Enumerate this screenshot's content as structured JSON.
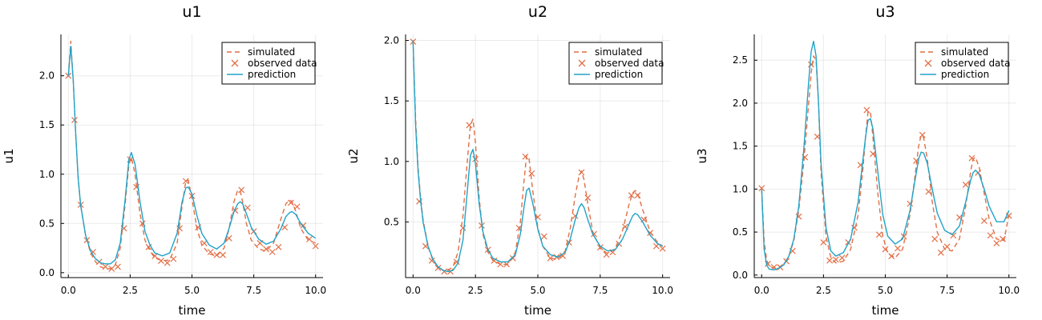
{
  "chart_data": [
    {
      "type": "line",
      "title": "u1",
      "xlabel": "time",
      "ylabel": "u1",
      "xlim": [
        -0.3,
        10.3
      ],
      "ylim": [
        -0.05,
        2.42
      ],
      "xticks": [
        0,
        2.5,
        5,
        7.5,
        10
      ],
      "xtick_labels": [
        "0.0",
        "2.5",
        "5.0",
        "7.5",
        "10.0"
      ],
      "yticks": [
        0,
        0.5,
        1.0,
        1.5,
        2.0
      ],
      "ytick_labels": [
        "0.0",
        "0.5",
        "1.0",
        "1.5",
        "2.0"
      ],
      "grid": true,
      "legend": "top-right",
      "series": [
        {
          "name": "simulated",
          "style": "dashed",
          "color": "#e26f46",
          "x": [
            0,
            0.1,
            0.2,
            0.3,
            0.4,
            0.5,
            0.7,
            0.9,
            1.1,
            1.3,
            1.5,
            1.7,
            1.9,
            2.1,
            2.3,
            2.45,
            2.55,
            2.7,
            2.9,
            3.1,
            3.3,
            3.5,
            3.8,
            4.1,
            4.4,
            4.6,
            4.75,
            4.85,
            5.0,
            5.2,
            5.4,
            5.7,
            6.0,
            6.3,
            6.5,
            6.7,
            6.85,
            6.95,
            7.05,
            7.2,
            7.4,
            7.7,
            8.0,
            8.3,
            8.6,
            8.8,
            8.95,
            9.05,
            9.2,
            9.4,
            9.7,
            10.0
          ],
          "y": [
            2.0,
            2.35,
            1.95,
            1.4,
            0.95,
            0.68,
            0.38,
            0.2,
            0.11,
            0.06,
            0.04,
            0.04,
            0.08,
            0.25,
            0.7,
            1.1,
            1.17,
            1.0,
            0.6,
            0.33,
            0.22,
            0.15,
            0.12,
            0.13,
            0.3,
            0.68,
            0.93,
            0.94,
            0.75,
            0.45,
            0.28,
            0.19,
            0.17,
            0.25,
            0.45,
            0.72,
            0.84,
            0.83,
            0.72,
            0.5,
            0.33,
            0.24,
            0.22,
            0.3,
            0.55,
            0.7,
            0.74,
            0.72,
            0.62,
            0.45,
            0.33,
            0.3
          ]
        },
        {
          "name": "observed data",
          "style": "markers",
          "color": "#e26f46",
          "x": [
            0.0,
            0.25,
            0.5,
            0.75,
            1.0,
            1.25,
            1.5,
            1.75,
            2.0,
            2.25,
            2.5,
            2.75,
            3.0,
            3.25,
            3.5,
            3.75,
            4.0,
            4.25,
            4.5,
            4.75,
            5.0,
            5.25,
            5.5,
            5.75,
            6.0,
            6.25,
            6.5,
            6.75,
            7.0,
            7.25,
            7.5,
            7.75,
            8.0,
            8.25,
            8.5,
            8.75,
            9.0,
            9.25,
            9.5,
            9.75,
            10.0
          ],
          "y": [
            2.0,
            1.55,
            0.69,
            0.33,
            0.21,
            0.11,
            0.06,
            0.04,
            0.06,
            0.45,
            1.15,
            0.87,
            0.5,
            0.26,
            0.17,
            0.12,
            0.1,
            0.14,
            0.45,
            0.93,
            0.78,
            0.46,
            0.3,
            0.21,
            0.18,
            0.18,
            0.35,
            0.63,
            0.84,
            0.66,
            0.42,
            0.3,
            0.24,
            0.21,
            0.26,
            0.46,
            0.71,
            0.67,
            0.48,
            0.34,
            0.27
          ]
        },
        {
          "name": "prediction",
          "style": "solid",
          "color": "#20a3c8",
          "x": [
            0,
            0.1,
            0.2,
            0.3,
            0.4,
            0.5,
            0.7,
            0.9,
            1.1,
            1.3,
            1.5,
            1.7,
            1.9,
            2.1,
            2.3,
            2.45,
            2.55,
            2.7,
            2.9,
            3.1,
            3.3,
            3.5,
            3.8,
            4.1,
            4.4,
            4.6,
            4.75,
            4.85,
            5.0,
            5.2,
            5.4,
            5.7,
            6.0,
            6.3,
            6.5,
            6.7,
            6.85,
            6.95,
            7.05,
            7.2,
            7.4,
            7.7,
            8.0,
            8.3,
            8.6,
            8.8,
            8.95,
            9.05,
            9.2,
            9.4,
            9.7,
            10.0
          ],
          "y": [
            2.0,
            2.3,
            1.95,
            1.4,
            0.95,
            0.68,
            0.38,
            0.22,
            0.14,
            0.1,
            0.09,
            0.09,
            0.13,
            0.3,
            0.75,
            1.15,
            1.22,
            1.1,
            0.72,
            0.42,
            0.28,
            0.2,
            0.17,
            0.2,
            0.4,
            0.72,
            0.86,
            0.87,
            0.8,
            0.58,
            0.4,
            0.28,
            0.24,
            0.3,
            0.45,
            0.62,
            0.7,
            0.72,
            0.7,
            0.6,
            0.46,
            0.34,
            0.29,
            0.32,
            0.45,
            0.57,
            0.61,
            0.62,
            0.59,
            0.5,
            0.4,
            0.35
          ]
        }
      ]
    },
    {
      "type": "line",
      "title": "u2",
      "xlabel": "time",
      "ylabel": "u2",
      "xlim": [
        -0.3,
        10.3
      ],
      "ylim": [
        0.04,
        2.05
      ],
      "xticks": [
        0,
        2.5,
        5,
        7.5,
        10
      ],
      "xtick_labels": [
        "0.0",
        "2.5",
        "5.0",
        "7.5",
        "10.0"
      ],
      "yticks": [
        0.5,
        1.0,
        1.5,
        2.0
      ],
      "ytick_labels": [
        "0.5",
        "1.0",
        "1.5",
        "2.0"
      ],
      "grid": true,
      "legend": "top-right",
      "series": [
        {
          "name": "simulated",
          "style": "dashed",
          "color": "#e26f46",
          "x": [
            0,
            0.1,
            0.2,
            0.3,
            0.4,
            0.6,
            0.8,
            1.0,
            1.2,
            1.4,
            1.6,
            1.8,
            2.0,
            2.15,
            2.3,
            2.4,
            2.5,
            2.65,
            2.8,
            3.0,
            3.2,
            3.5,
            3.8,
            4.1,
            4.3,
            4.45,
            4.55,
            4.65,
            4.8,
            5.0,
            5.2,
            5.5,
            5.8,
            6.1,
            6.3,
            6.5,
            6.65,
            6.75,
            6.85,
            7.0,
            7.2,
            7.5,
            7.8,
            8.1,
            8.4,
            8.65,
            8.8,
            8.9,
            9.0,
            9.2,
            9.5,
            9.8,
            10.0
          ],
          "y": [
            2.0,
            1.35,
            0.95,
            0.7,
            0.52,
            0.3,
            0.18,
            0.13,
            0.1,
            0.1,
            0.13,
            0.25,
            0.55,
            0.95,
            1.3,
            1.35,
            1.15,
            0.7,
            0.4,
            0.25,
            0.18,
            0.15,
            0.15,
            0.25,
            0.5,
            0.85,
            1.05,
            1.02,
            0.75,
            0.45,
            0.3,
            0.2,
            0.19,
            0.26,
            0.45,
            0.72,
            0.88,
            0.92,
            0.85,
            0.65,
            0.42,
            0.28,
            0.24,
            0.28,
            0.43,
            0.64,
            0.74,
            0.76,
            0.74,
            0.6,
            0.42,
            0.33,
            0.3
          ]
        },
        {
          "name": "observed data",
          "style": "markers",
          "color": "#e26f46",
          "x": [
            0.0,
            0.25,
            0.5,
            0.75,
            1.0,
            1.25,
            1.5,
            1.75,
            2.0,
            2.25,
            2.5,
            2.75,
            3.0,
            3.25,
            3.5,
            3.75,
            4.0,
            4.25,
            4.5,
            4.75,
            5.0,
            5.25,
            5.5,
            5.75,
            6.0,
            6.25,
            6.5,
            6.75,
            7.0,
            7.25,
            7.5,
            7.75,
            8.0,
            8.25,
            8.5,
            8.75,
            9.0,
            9.25,
            9.5,
            9.75,
            10.0
          ],
          "y": [
            1.99,
            0.67,
            0.3,
            0.18,
            0.12,
            0.09,
            0.09,
            0.17,
            0.45,
            1.3,
            1.02,
            0.47,
            0.27,
            0.18,
            0.15,
            0.15,
            0.2,
            0.45,
            1.04,
            0.9,
            0.54,
            0.38,
            0.2,
            0.21,
            0.22,
            0.33,
            0.55,
            0.91,
            0.7,
            0.4,
            0.29,
            0.23,
            0.25,
            0.32,
            0.46,
            0.72,
            0.72,
            0.52,
            0.41,
            0.3,
            0.28
          ]
        },
        {
          "name": "prediction",
          "style": "solid",
          "color": "#20a3c8",
          "x": [
            0,
            0.1,
            0.2,
            0.3,
            0.4,
            0.6,
            0.8,
            1.0,
            1.2,
            1.4,
            1.6,
            1.8,
            2.0,
            2.15,
            2.3,
            2.4,
            2.5,
            2.65,
            2.8,
            3.0,
            3.2,
            3.5,
            3.8,
            4.1,
            4.3,
            4.45,
            4.55,
            4.65,
            4.8,
            5.0,
            5.2,
            5.5,
            5.8,
            6.1,
            6.3,
            6.5,
            6.65,
            6.75,
            6.85,
            7.0,
            7.2,
            7.5,
            7.8,
            8.1,
            8.4,
            8.65,
            8.8,
            8.9,
            9.0,
            9.2,
            9.5,
            9.8,
            10.0
          ],
          "y": [
            2.0,
            1.3,
            0.92,
            0.68,
            0.5,
            0.3,
            0.19,
            0.13,
            0.1,
            0.09,
            0.1,
            0.16,
            0.35,
            0.7,
            1.05,
            1.1,
            0.98,
            0.65,
            0.42,
            0.27,
            0.2,
            0.17,
            0.17,
            0.23,
            0.4,
            0.63,
            0.76,
            0.78,
            0.65,
            0.44,
            0.3,
            0.23,
            0.21,
            0.25,
            0.36,
            0.52,
            0.62,
            0.65,
            0.62,
            0.52,
            0.4,
            0.3,
            0.26,
            0.27,
            0.36,
            0.48,
            0.55,
            0.57,
            0.56,
            0.5,
            0.39,
            0.32,
            0.3
          ]
        }
      ]
    },
    {
      "type": "line",
      "title": "u3",
      "xlabel": "time",
      "ylabel": "u3",
      "xlim": [
        -0.3,
        10.3
      ],
      "ylim": [
        -0.03,
        2.8
      ],
      "xticks": [
        0,
        2.5,
        5,
        7.5,
        10
      ],
      "xtick_labels": [
        "0.0",
        "2.5",
        "5.0",
        "7.5",
        "10.0"
      ],
      "yticks": [
        0,
        0.5,
        1.0,
        1.5,
        2.0,
        2.5
      ],
      "ytick_labels": [
        "0.0",
        "0.5",
        "1.0",
        "1.5",
        "2.0",
        "2.5"
      ],
      "grid": true,
      "legend": "top-right",
      "series": [
        {
          "name": "simulated",
          "style": "dashed",
          "color": "#e26f46",
          "x": [
            0,
            0.1,
            0.2,
            0.3,
            0.5,
            0.7,
            0.9,
            1.1,
            1.3,
            1.5,
            1.7,
            1.9,
            2.0,
            2.1,
            2.2,
            2.3,
            2.4,
            2.6,
            2.8,
            3.0,
            3.3,
            3.6,
            3.9,
            4.1,
            4.2,
            4.3,
            4.4,
            4.5,
            4.7,
            4.9,
            5.1,
            5.4,
            5.7,
            6.0,
            6.2,
            6.35,
            6.45,
            6.55,
            6.7,
            6.9,
            7.1,
            7.4,
            7.7,
            8.0,
            8.25,
            8.45,
            8.55,
            8.65,
            8.8,
            9.0,
            9.2,
            9.5,
            9.8,
            10.0
          ],
          "y": [
            1.0,
            0.4,
            0.18,
            0.1,
            0.08,
            0.09,
            0.13,
            0.22,
            0.4,
            0.75,
            1.3,
            2.0,
            2.35,
            2.55,
            2.5,
            2.0,
            1.2,
            0.45,
            0.2,
            0.14,
            0.16,
            0.3,
            0.7,
            1.25,
            1.6,
            1.9,
            1.9,
            1.6,
            0.95,
            0.45,
            0.25,
            0.2,
            0.3,
            0.7,
            1.15,
            1.5,
            1.63,
            1.6,
            1.35,
            0.85,
            0.5,
            0.3,
            0.28,
            0.42,
            0.8,
            1.2,
            1.35,
            1.37,
            1.25,
            0.95,
            0.65,
            0.42,
            0.4,
            0.7
          ]
        },
        {
          "name": "observed data",
          "style": "markers",
          "color": "#e26f46",
          "x": [
            0.0,
            0.25,
            0.5,
            0.75,
            1.0,
            1.25,
            1.5,
            1.75,
            2.0,
            2.25,
            2.5,
            2.75,
            3.0,
            3.25,
            3.5,
            3.75,
            4.0,
            4.25,
            4.5,
            4.75,
            5.0,
            5.25,
            5.5,
            5.75,
            6.0,
            6.25,
            6.5,
            6.75,
            7.0,
            7.25,
            7.5,
            7.75,
            8.0,
            8.25,
            8.5,
            8.75,
            9.0,
            9.25,
            9.5,
            9.75,
            10.0
          ],
          "y": [
            1.01,
            0.13,
            0.09,
            0.09,
            0.16,
            0.28,
            0.68,
            1.37,
            2.45,
            1.61,
            0.38,
            0.17,
            0.18,
            0.2,
            0.38,
            0.55,
            1.28,
            1.92,
            1.41,
            0.47,
            0.3,
            0.22,
            0.31,
            0.45,
            0.83,
            1.33,
            1.63,
            0.97,
            0.42,
            0.26,
            0.33,
            0.46,
            0.67,
            1.05,
            1.36,
            1.19,
            0.63,
            0.46,
            0.37,
            0.42,
            0.69
          ]
        },
        {
          "name": "prediction",
          "style": "solid",
          "color": "#20a3c8",
          "x": [
            0,
            0.1,
            0.2,
            0.3,
            0.5,
            0.7,
            0.9,
            1.1,
            1.3,
            1.5,
            1.7,
            1.9,
            2.0,
            2.1,
            2.2,
            2.3,
            2.4,
            2.6,
            2.8,
            3.0,
            3.3,
            3.6,
            3.9,
            4.1,
            4.2,
            4.3,
            4.4,
            4.5,
            4.7,
            4.9,
            5.1,
            5.4,
            5.7,
            6.0,
            6.2,
            6.35,
            6.45,
            6.55,
            6.7,
            6.9,
            7.1,
            7.4,
            7.7,
            8.0,
            8.25,
            8.45,
            8.55,
            8.65,
            8.8,
            9.0,
            9.2,
            9.5,
            9.8,
            10.0
          ],
          "y": [
            1.0,
            0.3,
            0.12,
            0.07,
            0.06,
            0.08,
            0.12,
            0.22,
            0.42,
            0.8,
            1.45,
            2.25,
            2.6,
            2.72,
            2.55,
            2.0,
            1.3,
            0.55,
            0.28,
            0.22,
            0.26,
            0.42,
            0.85,
            1.35,
            1.6,
            1.8,
            1.82,
            1.7,
            1.2,
            0.7,
            0.45,
            0.36,
            0.42,
            0.75,
            1.1,
            1.35,
            1.43,
            1.42,
            1.3,
            1.0,
            0.72,
            0.52,
            0.47,
            0.57,
            0.85,
            1.1,
            1.19,
            1.22,
            1.17,
            1.0,
            0.8,
            0.62,
            0.62,
            0.75
          ]
        }
      ]
    }
  ]
}
